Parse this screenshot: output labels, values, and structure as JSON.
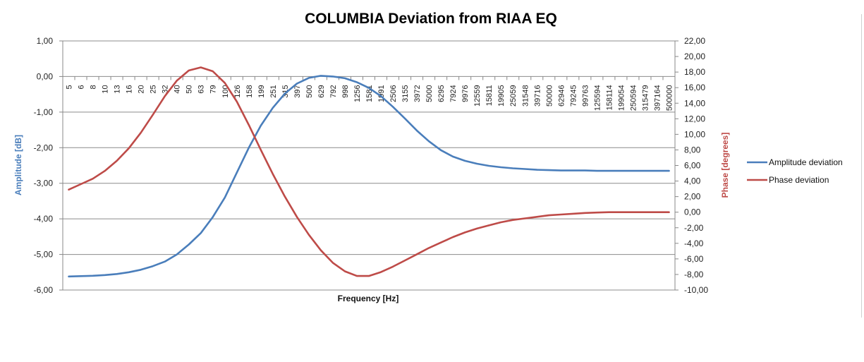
{
  "chart_data": {
    "type": "line",
    "title": "COLUMBIA Deviation from RIAA EQ",
    "xlabel": "Frequency [Hz]",
    "ylabel_left": "Amplitude [dB]",
    "ylabel_right": "Phase [degrees]",
    "ylim_left": [
      -6,
      1
    ],
    "ylim_right": [
      -10,
      22
    ],
    "yticks_left": [
      "1,00",
      "0,00",
      "-1,00",
      "-2,00",
      "-3,00",
      "-4,00",
      "-5,00",
      "-6,00"
    ],
    "yticks_right": [
      "22,00",
      "20,00",
      "18,00",
      "16,00",
      "14,00",
      "12,00",
      "10,00",
      "8,00",
      "6,00",
      "4,00",
      "2,00",
      "0,00",
      "-2,00",
      "-4,00",
      "-6,00",
      "-8,00",
      "-10,00"
    ],
    "x_scale": "log",
    "x_tick_labels": [
      "5",
      "6",
      "8",
      "10",
      "13",
      "16",
      "20",
      "25",
      "32",
      "40",
      "50",
      "63",
      "79",
      "100",
      "126",
      "158",
      "199",
      "251",
      "315",
      "397",
      "500",
      "629",
      "792",
      "998",
      "1256",
      "1581",
      "1991",
      "2506",
      "3155",
      "3972",
      "5000",
      "6295",
      "7924",
      "9976",
      "12559",
      "15811",
      "19905",
      "25059",
      "31548",
      "39716",
      "50000",
      "62946",
      "79245",
      "99763",
      "125594",
      "158114",
      "199054",
      "250594",
      "315479",
      "397164",
      "500000"
    ],
    "grid": "horizontal",
    "legend_position": "right",
    "series": [
      {
        "name": "Amplitude deviation",
        "axis": "left",
        "color": "#4a7ebb",
        "values": [
          -5.62,
          -5.61,
          -5.6,
          -5.58,
          -5.55,
          -5.5,
          -5.43,
          -5.33,
          -5.2,
          -5.0,
          -4.72,
          -4.4,
          -3.95,
          -3.4,
          -2.7,
          -2.0,
          -1.38,
          -0.88,
          -0.48,
          -0.2,
          -0.04,
          0.02,
          0.0,
          -0.05,
          -0.16,
          -0.32,
          -0.55,
          -0.85,
          -1.18,
          -1.52,
          -1.82,
          -2.07,
          -2.25,
          -2.37,
          -2.45,
          -2.51,
          -2.55,
          -2.58,
          -2.6,
          -2.62,
          -2.63,
          -2.64,
          -2.64,
          -2.64,
          -2.65,
          -2.65,
          -2.65,
          -2.65,
          -2.65,
          -2.65,
          -2.65
        ]
      },
      {
        "name": "Phase deviation",
        "axis": "right",
        "color": "#be4b48",
        "values": [
          2.9,
          3.6,
          4.3,
          5.3,
          6.6,
          8.2,
          10.2,
          12.5,
          14.9,
          16.9,
          18.2,
          18.6,
          18.1,
          16.6,
          14.2,
          11.2,
          8.0,
          4.9,
          2.0,
          -0.6,
          -2.9,
          -4.9,
          -6.5,
          -7.6,
          -8.2,
          -8.2,
          -7.7,
          -7.0,
          -6.2,
          -5.4,
          -4.6,
          -3.9,
          -3.2,
          -2.6,
          -2.1,
          -1.7,
          -1.3,
          -1.0,
          -0.8,
          -0.6,
          -0.4,
          -0.3,
          -0.2,
          -0.1,
          -0.05,
          0.0,
          0.0,
          0.0,
          0.0,
          0.0,
          0.0
        ]
      }
    ]
  }
}
